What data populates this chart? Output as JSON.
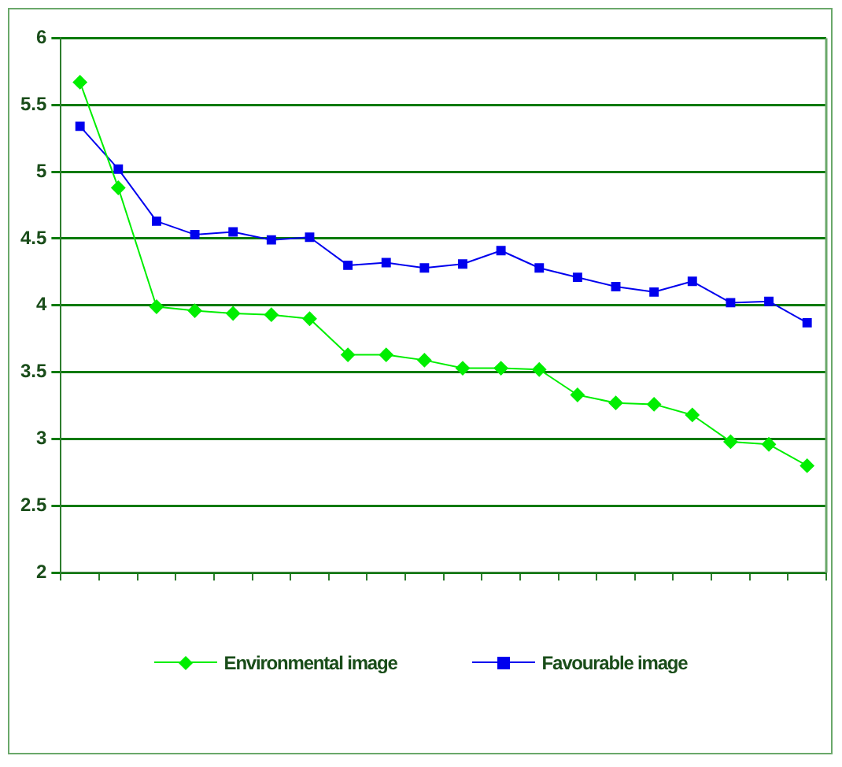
{
  "chart_data": {
    "type": "line",
    "categories": [
      null,
      null,
      null,
      null,
      null,
      null,
      null,
      null,
      null,
      null,
      null,
      null,
      null,
      null,
      null,
      null,
      null,
      null,
      null,
      null
    ],
    "series": [
      {
        "name": "Environmental image",
        "color": "#00ee00",
        "marker": "diamond",
        "values": [
          5.67,
          4.88,
          3.99,
          3.96,
          3.94,
          3.93,
          3.9,
          3.63,
          3.63,
          3.59,
          3.53,
          3.53,
          3.52,
          3.33,
          3.27,
          3.26,
          3.18,
          2.98,
          2.96,
          2.8
        ]
      },
      {
        "name": "Favourable image",
        "color": "#0000ee",
        "marker": "square",
        "values": [
          5.34,
          5.02,
          4.63,
          4.53,
          4.55,
          4.49,
          4.51,
          4.3,
          4.32,
          4.28,
          4.31,
          4.41,
          4.28,
          4.21,
          4.14,
          4.1,
          4.18,
          4.02,
          4.03,
          3.87
        ]
      }
    ],
    "ylim": [
      2,
      6
    ],
    "yticks": [
      2,
      2.5,
      3,
      3.5,
      4,
      4.5,
      5,
      5.5,
      6
    ],
    "grid": "y",
    "legend": "bottom",
    "line_style": "solid"
  }
}
